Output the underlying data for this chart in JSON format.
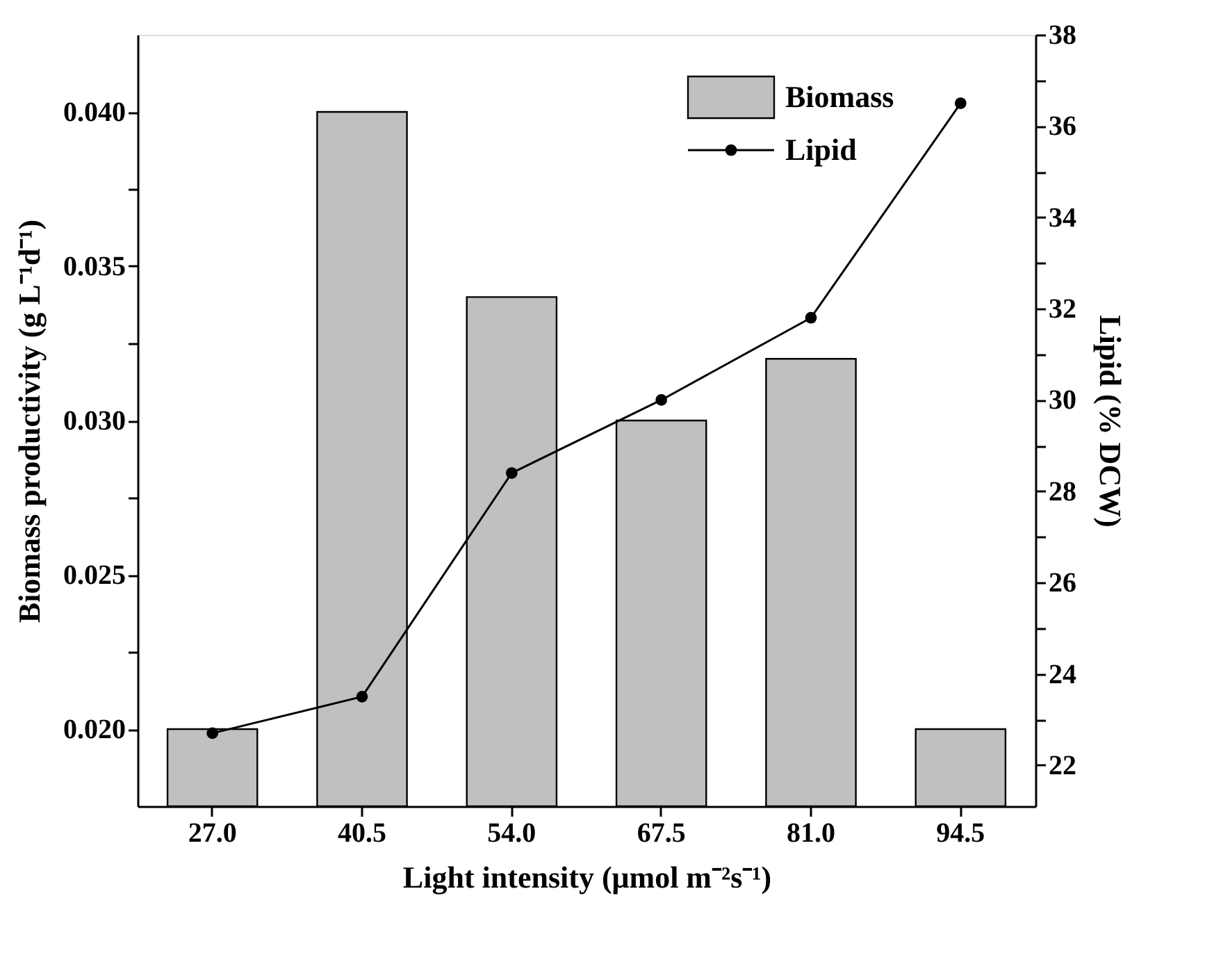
{
  "chart_data": {
    "type": "bar",
    "xlabel": "Light intensity (μmol m⁻²s⁻¹)",
    "ylabel": "Biomass productivity (g L⁻¹d⁻¹)",
    "y2label": "Lipid (% DCW)",
    "categories": [
      "27.0",
      "40.5",
      "54.0",
      "67.5",
      "81.0",
      "94.5"
    ],
    "series": [
      {
        "name": "Biomass",
        "color": "#c0c0c0",
        "values": [
          0.02,
          0.04,
          0.034,
          0.03,
          0.032,
          0.02
        ]
      },
      {
        "name": "Lipid",
        "type": "line",
        "axis": "y2",
        "color": "#000000",
        "marker": "circle",
        "line_style": "solid",
        "values": [
          22.7,
          23.5,
          28.4,
          30.0,
          31.8,
          36.5
        ]
      }
    ],
    "ylim": [
      0.0175,
      0.0425
    ],
    "yticks": [
      {
        "value": 0.02,
        "label": "0.020"
      },
      {
        "value": 0.0225,
        "label": null
      },
      {
        "value": 0.025,
        "label": "0.025"
      },
      {
        "value": 0.0275,
        "label": null
      },
      {
        "value": 0.03,
        "label": "0.030"
      },
      {
        "value": 0.0325,
        "label": null
      },
      {
        "value": 0.035,
        "label": "0.035"
      },
      {
        "value": 0.0375,
        "label": null
      },
      {
        "value": 0.04,
        "label": "0.040"
      }
    ],
    "y2lim": [
      21.1,
      38
    ],
    "y2ticks": [
      22,
      {
        "value": 23,
        "label": null
      },
      24,
      {
        "value": 25,
        "label": null
      },
      26,
      {
        "value": 27,
        "label": null
      },
      28,
      {
        "value": 29,
        "label": null
      },
      30,
      {
        "value": 31,
        "label": null
      },
      32,
      {
        "value": 33,
        "label": null
      },
      34,
      {
        "value": 35,
        "label": null
      },
      36,
      {
        "value": 37,
        "label": null
      },
      38
    ],
    "grid": false,
    "legend": "top right"
  }
}
